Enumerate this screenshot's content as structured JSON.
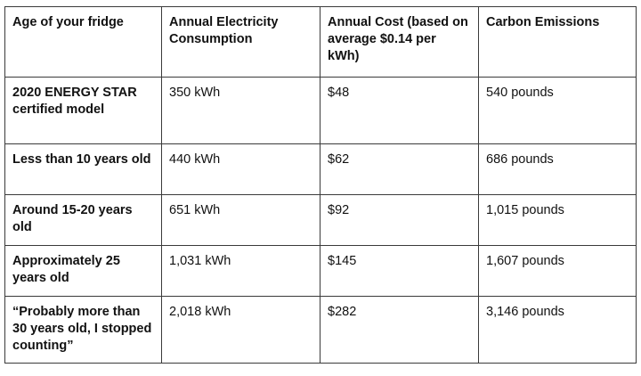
{
  "table": {
    "headers": [
      "Age of your fridge",
      "Annual Electricity Consumption",
      "Annual Cost (based on average $0.14 per kWh)",
      "Carbon Emissions"
    ],
    "rows": [
      [
        "2020 ENERGY STAR certified model",
        "350 kWh",
        "$48",
        "540 pounds"
      ],
      [
        "Less than 10 years old",
        "440 kWh",
        "$62",
        "686 pounds"
      ],
      [
        "Around 15-20 years old",
        "651 kWh",
        "$92",
        "1,015 pounds"
      ],
      [
        "Approximately 25 years old",
        "1,031 kWh",
        "$145",
        "1,607 pounds"
      ],
      [
        "“Probably more than 30 years old, I stopped counting”",
        "2,018 kWh",
        "$282",
        "3,146 pounds"
      ]
    ]
  }
}
